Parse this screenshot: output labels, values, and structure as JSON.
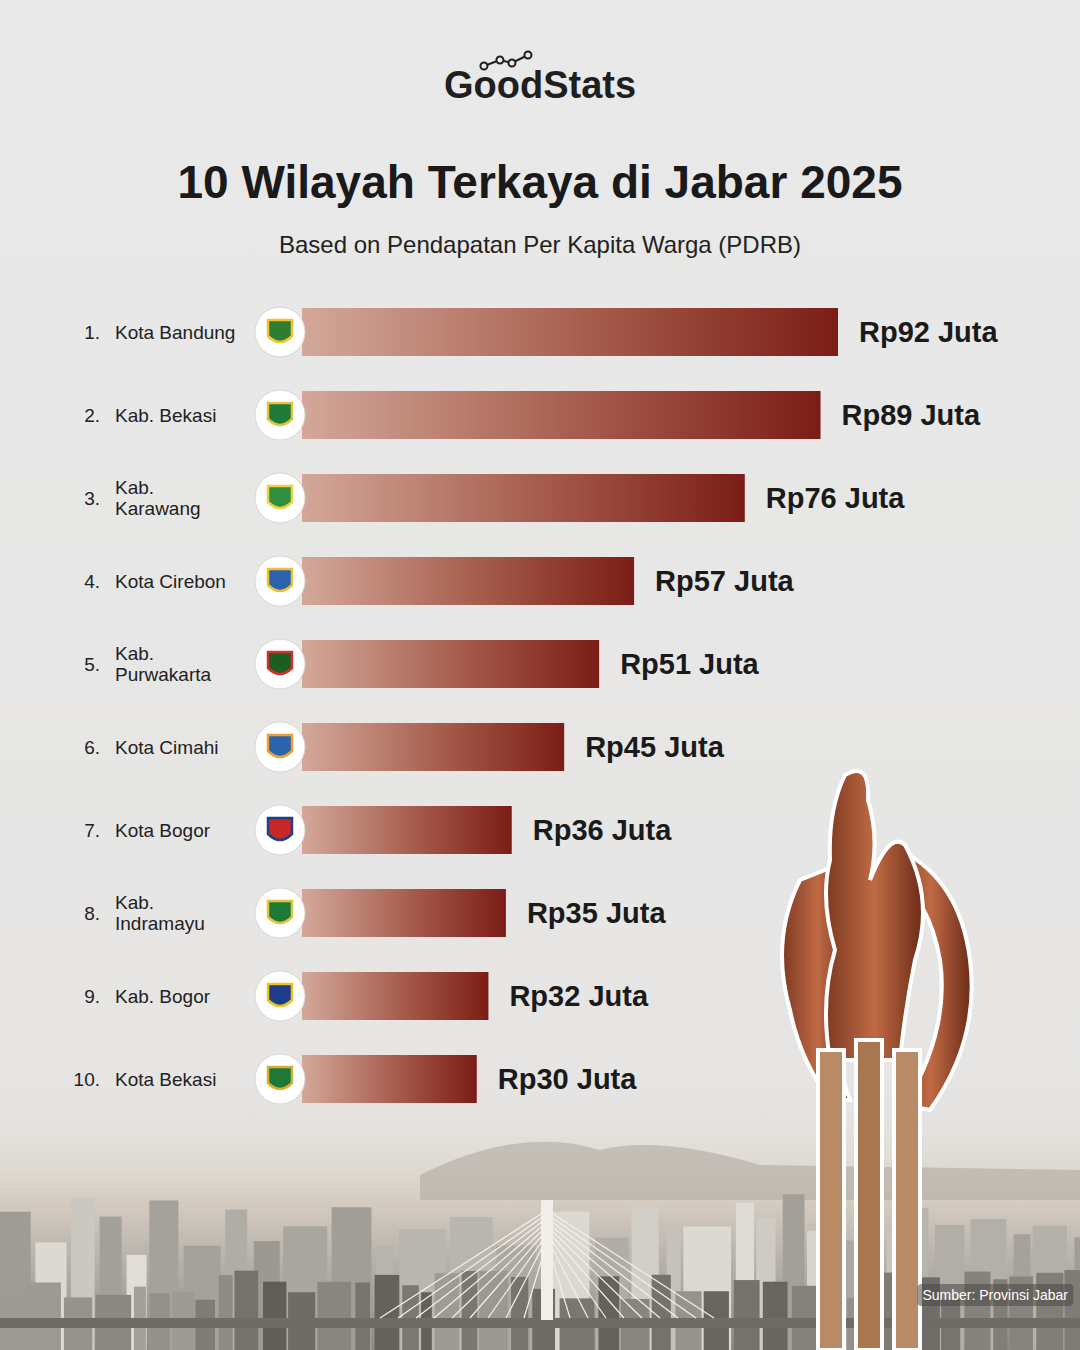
{
  "chart_data": {
    "type": "bar",
    "orientation": "horizontal",
    "brand": "GoodStats",
    "title": "10 Wilayah Terkaya di Jabar 2025",
    "subtitle": "Based on Pendapatan Per Kapita Warga (PDRB)",
    "source": "Sumber: Provinsi Jabar",
    "rank_labels": [
      "1.",
      "2.",
      "3.",
      "4.",
      "5.",
      "6.",
      "7.",
      "8.",
      "9.",
      "10."
    ],
    "categories": [
      "Kota Bandung",
      "Kab. Bekasi",
      "Kab. Karawang",
      "Kota Cirebon",
      "Kab. Purwakarta",
      "Kota Cimahi",
      "Kota Bogor",
      "Kab. Indramayu",
      "Kab. Bogor",
      "Kota Bekasi"
    ],
    "values": [
      92,
      89,
      76,
      57,
      51,
      45,
      36,
      35,
      32,
      30
    ],
    "value_labels": [
      "Rp92 Juta",
      "Rp89 Juta",
      "Rp76 Juta",
      "Rp57 Juta",
      "Rp51 Juta",
      "Rp45 Juta",
      "Rp36 Juta",
      "Rp35 Juta",
      "Rp32 Juta",
      "Rp30 Juta"
    ],
    "color": "#7b1d16",
    "xlim": [
      0,
      92
    ],
    "tick_labels": false,
    "grid": false,
    "data_labels": true
  }
}
